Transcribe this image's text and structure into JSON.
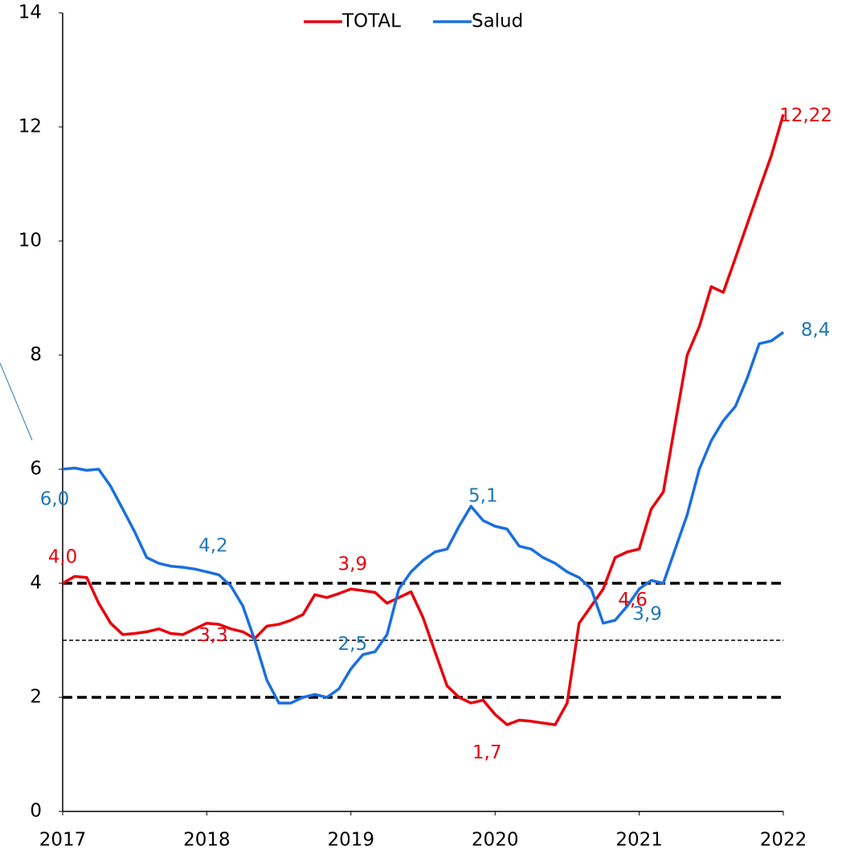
{
  "chart_data": {
    "type": "line",
    "x": [
      2017,
      2017.083,
      2017.167,
      2017.25,
      2017.333,
      2017.417,
      2017.5,
      2017.583,
      2017.667,
      2017.75,
      2017.833,
      2017.917,
      2018,
      2018.083,
      2018.167,
      2018.25,
      2018.333,
      2018.417,
      2018.5,
      2018.583,
      2018.667,
      2018.75,
      2018.833,
      2018.917,
      2019,
      2019.083,
      2019.167,
      2019.25,
      2019.333,
      2019.417,
      2019.5,
      2019.583,
      2019.667,
      2019.75,
      2019.833,
      2019.917,
      2020,
      2020.083,
      2020.167,
      2020.25,
      2020.333,
      2020.417,
      2020.5,
      2020.583,
      2020.667,
      2020.75,
      2020.833,
      2020.917,
      2021,
      2021.083,
      2021.167,
      2021.25,
      2021.333,
      2021.417,
      2021.5,
      2021.583,
      2021.667,
      2021.75,
      2021.833,
      2021.917,
      2022
    ],
    "series": [
      {
        "name": "TOTAL",
        "color": "#e8000b",
        "label_color": "#e8000b",
        "values": [
          4.0,
          4.12,
          4.1,
          3.65,
          3.3,
          3.1,
          3.12,
          3.15,
          3.2,
          3.12,
          3.1,
          3.2,
          3.3,
          3.28,
          3.2,
          3.15,
          3.03,
          3.25,
          3.28,
          3.35,
          3.45,
          3.8,
          3.75,
          3.82,
          3.9,
          3.87,
          3.84,
          3.65,
          3.75,
          3.85,
          3.4,
          2.8,
          2.2,
          2.0,
          1.9,
          1.95,
          1.7,
          1.52,
          1.6,
          1.58,
          1.55,
          1.52,
          1.9,
          3.3,
          3.6,
          3.9,
          4.45,
          4.55,
          4.6,
          5.3,
          5.6,
          6.8,
          8.0,
          8.5,
          9.2,
          9.1,
          9.7,
          10.3,
          10.9,
          11.5,
          12.22
        ],
        "value_labels": [
          "4,0",
          null,
          null,
          null,
          null,
          null,
          null,
          null,
          null,
          null,
          null,
          null,
          "3,3",
          null,
          null,
          null,
          null,
          null,
          null,
          null,
          null,
          null,
          null,
          null,
          "3,9",
          null,
          null,
          null,
          null,
          null,
          null,
          null,
          null,
          null,
          null,
          null,
          "1,7",
          null,
          null,
          null,
          null,
          null,
          null,
          null,
          null,
          null,
          null,
          null,
          "4,6",
          null,
          null,
          null,
          null,
          null,
          null,
          null,
          null,
          null,
          null,
          null,
          "12,22"
        ]
      },
      {
        "name": "Salud",
        "color": "#1a6fdf",
        "label_color": "#1f78b8",
        "values": [
          6.0,
          6.02,
          5.98,
          6.0,
          5.7,
          5.3,
          4.9,
          4.45,
          4.35,
          4.3,
          4.28,
          4.25,
          4.2,
          4.15,
          3.95,
          3.6,
          3.0,
          2.3,
          1.9,
          1.9,
          2.0,
          2.05,
          2.0,
          2.15,
          2.5,
          2.75,
          2.8,
          3.1,
          3.9,
          4.2,
          4.4,
          4.55,
          4.6,
          5.0,
          5.35,
          5.1,
          5.0,
          4.95,
          4.65,
          4.6,
          4.45,
          4.35,
          4.2,
          4.1,
          3.9,
          3.3,
          3.35,
          3.6,
          3.9,
          4.05,
          4.0,
          4.6,
          5.2,
          6.0,
          6.5,
          6.85,
          7.1,
          7.6,
          8.2,
          8.25,
          8.4
        ],
        "value_labels": [
          "6,0",
          null,
          null,
          null,
          null,
          null,
          null,
          null,
          null,
          null,
          null,
          null,
          "4,2",
          null,
          null,
          null,
          null,
          null,
          null,
          null,
          null,
          null,
          null,
          null,
          "2,5",
          null,
          null,
          null,
          null,
          null,
          null,
          null,
          null,
          null,
          null,
          "5,1",
          null,
          null,
          null,
          null,
          null,
          null,
          null,
          null,
          null,
          null,
          null,
          null,
          "3,9",
          null,
          null,
          null,
          null,
          null,
          null,
          null,
          null,
          null,
          null,
          null,
          "8,4"
        ]
      }
    ],
    "hlines": [
      {
        "value": 4,
        "style": "thick"
      },
      {
        "value": 3,
        "style": "thin"
      },
      {
        "value": 2,
        "style": "thick"
      }
    ],
    "xlim": [
      2017,
      2022
    ],
    "xticks": [
      2017,
      2018,
      2019,
      2020,
      2021,
      2022
    ],
    "ylim": [
      0,
      14
    ],
    "yticks": [
      0,
      2,
      4,
      6,
      8,
      10,
      12,
      14
    ],
    "legend": "top"
  }
}
